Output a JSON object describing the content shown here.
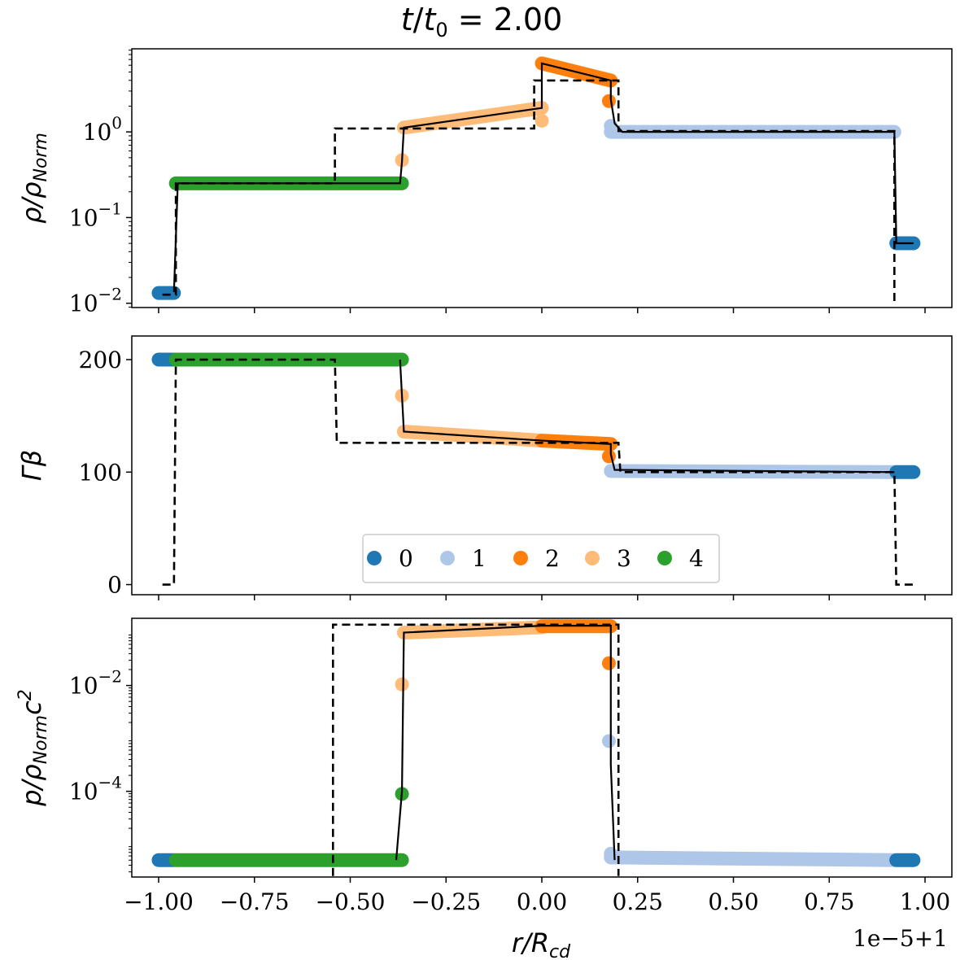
{
  "chart_data": {
    "type": "scatter",
    "title": "t/t₀ = 2.00",
    "xlabel": "r/R_cd",
    "x_offset_label": "1e−5+1",
    "xlim": [
      -1.07,
      1.07
    ],
    "x_ticks": [
      -1.0,
      -0.75,
      -0.5,
      -0.25,
      0.0,
      0.25,
      0.5,
      0.75,
      1.0
    ],
    "x_tick_labels": [
      "−1.00",
      "−0.75",
      "−0.50",
      "−0.25",
      "0.00",
      "0.25",
      "0.50",
      "0.75",
      "1.00"
    ],
    "legend": {
      "entries": [
        {
          "label": "0",
          "color": "#1f77b4"
        },
        {
          "label": "1",
          "color": "#aec7e8"
        },
        {
          "label": "2",
          "color": "#ff7f0e"
        },
        {
          "label": "3",
          "color": "#ffbb78"
        },
        {
          "label": "4",
          "color": "#2ca02c"
        }
      ],
      "placement": "bottom-center of middle panel"
    },
    "panels": [
      {
        "ylabel": "ρ/ρ_Norm",
        "yscale": "log",
        "ylim_log10": [
          -2.05,
          0.97
        ],
        "y_ticks": [
          {
            "log10": 0,
            "base": "10",
            "exp": "0"
          },
          {
            "log10": -1,
            "base": "10",
            "exp": "−1"
          },
          {
            "log10": -2,
            "base": "10",
            "exp": "−2"
          }
        ],
        "analytic_dashed": [
          [
            -0.99,
            -1.9
          ],
          [
            -0.955,
            -1.9
          ],
          [
            -0.955,
            -0.6
          ],
          [
            -0.54,
            -0.6
          ],
          [
            -0.54,
            0.04
          ],
          [
            -0.02,
            0.04
          ],
          [
            -0.02,
            0.6
          ],
          [
            0.2,
            0.6
          ],
          [
            0.2,
            0.01
          ],
          [
            0.92,
            0.01
          ],
          [
            0.92,
            -2.0
          ]
        ],
        "sim_line": [
          [
            -0.96,
            -1.87
          ],
          [
            -0.95,
            -0.6
          ],
          [
            -0.37,
            -0.6
          ],
          [
            -0.365,
            -0.35
          ],
          [
            -0.36,
            0.05
          ],
          [
            0.0,
            0.28
          ],
          [
            0.0,
            0.8
          ],
          [
            0.18,
            0.6
          ],
          [
            0.18,
            0.38
          ],
          [
            0.19,
            0.1
          ],
          [
            0.21,
            0.0
          ],
          [
            0.9,
            0.0
          ],
          [
            0.92,
            0.0
          ],
          [
            0.925,
            -1.3
          ],
          [
            0.97,
            -1.3
          ]
        ],
        "segments": [
          {
            "cluster": "0",
            "x0": -1.0,
            "x1": -0.96,
            "y0": -1.88,
            "y1": -1.88
          },
          {
            "cluster": "4",
            "x0": -0.955,
            "x1": -0.365,
            "y0": -0.6,
            "y1": -0.6
          },
          {
            "cluster": "3",
            "x0": -0.36,
            "x1": 0.0,
            "y0": 0.05,
            "y1": 0.28
          },
          {
            "cluster": "2",
            "x0": 0.0,
            "x1": 0.18,
            "y0": 0.8,
            "y1": 0.6
          },
          {
            "cluster": "1",
            "x0": 0.18,
            "x1": 0.92,
            "y0": 0.0,
            "y1": 0.0
          },
          {
            "cluster": "0",
            "x0": 0.925,
            "x1": 0.97,
            "y0": -1.3,
            "y1": -1.3
          }
        ],
        "points": [
          {
            "cluster": "3",
            "x": -0.365,
            "y": -0.33
          },
          {
            "cluster": "3",
            "x": 0.0,
            "y": 0.13
          },
          {
            "cluster": "2",
            "x": 0.175,
            "y": 0.36
          },
          {
            "cluster": "1",
            "x": 0.18,
            "y": 0.07
          }
        ]
      },
      {
        "ylabel": "Γβ",
        "yscale": "linear",
        "ylim": [
          -9,
          221
        ],
        "y_ticks": [
          {
            "value": 0,
            "label": "0"
          },
          {
            "value": 100,
            "label": "100"
          },
          {
            "value": 200,
            "label": "200"
          }
        ],
        "analytic_dashed": [
          [
            -0.99,
            0
          ],
          [
            -0.96,
            0
          ],
          [
            -0.955,
            200
          ],
          [
            -0.54,
            200
          ],
          [
            -0.535,
            126
          ],
          [
            -0.02,
            126
          ],
          [
            0.2,
            126
          ],
          [
            0.205,
            100
          ],
          [
            0.92,
            100
          ],
          [
            0.925,
            0
          ],
          [
            0.97,
            0
          ]
        ],
        "sim_line": [
          [
            -0.37,
            200
          ],
          [
            -0.365,
            168
          ],
          [
            -0.36,
            136
          ],
          [
            0.0,
            128
          ],
          [
            0.18,
            125
          ],
          [
            0.18,
            116
          ],
          [
            0.19,
            102
          ],
          [
            0.92,
            100
          ]
        ],
        "segments": [
          {
            "cluster": "0",
            "x0": -1.0,
            "x1": -0.96,
            "y0": 200,
            "y1": 200
          },
          {
            "cluster": "4",
            "x0": -0.955,
            "x1": -0.365,
            "y0": 200,
            "y1": 200
          },
          {
            "cluster": "3",
            "x0": -0.36,
            "x1": 0.0,
            "y0": 136,
            "y1": 128
          },
          {
            "cluster": "2",
            "x0": 0.0,
            "x1": 0.18,
            "y0": 128,
            "y1": 125
          },
          {
            "cluster": "1",
            "x0": 0.18,
            "x1": 0.92,
            "y0": 101,
            "y1": 100
          },
          {
            "cluster": "0",
            "x0": 0.925,
            "x1": 0.97,
            "y0": 100,
            "y1": 100
          }
        ],
        "points": [
          {
            "cluster": "3",
            "x": -0.365,
            "y": 168
          },
          {
            "cluster": "2",
            "x": 0.175,
            "y": 114
          }
        ]
      },
      {
        "ylabel": "p/ρ_Norm c²",
        "yscale": "log",
        "ylim_log10": [
          -5.62,
          -0.73
        ],
        "y_ticks": [
          {
            "log10": -2,
            "base": "10",
            "exp": "−2"
          },
          {
            "log10": -4,
            "base": "10",
            "exp": "−4"
          }
        ],
        "analytic_dashed": [
          [
            -0.545,
            -5.6
          ],
          [
            -0.545,
            -0.85
          ],
          [
            0.2,
            -0.85
          ],
          [
            0.2,
            -5.6
          ]
        ],
        "sim_line": [
          [
            -0.38,
            -5.3
          ],
          [
            -0.365,
            -4.0
          ],
          [
            -0.36,
            -1.0
          ],
          [
            0.0,
            -0.87
          ],
          [
            0.18,
            -0.87
          ],
          [
            0.18,
            -3.5
          ],
          [
            0.19,
            -5.3
          ]
        ],
        "segments": [
          {
            "cluster": "0",
            "x0": -1.0,
            "x1": -0.96,
            "y0": -5.3,
            "y1": -5.3
          },
          {
            "cluster": "4",
            "x0": -0.955,
            "x1": -0.365,
            "y0": -5.3,
            "y1": -5.3
          },
          {
            "cluster": "3",
            "x0": -0.36,
            "x1": 0.0,
            "y0": -1.0,
            "y1": -0.9
          },
          {
            "cluster": "2",
            "x0": 0.0,
            "x1": 0.18,
            "y0": -0.88,
            "y1": -0.88
          },
          {
            "cluster": "1",
            "x0": 0.18,
            "x1": 0.92,
            "y0": -5.25,
            "y1": -5.3
          },
          {
            "cluster": "0",
            "x0": 0.925,
            "x1": 0.97,
            "y0": -5.3,
            "y1": -5.3
          }
        ],
        "points": [
          {
            "cluster": "3",
            "x": -0.365,
            "y": -1.98
          },
          {
            "cluster": "4",
            "x": -0.365,
            "y": -4.05
          },
          {
            "cluster": "2",
            "x": 0.175,
            "y": -1.58
          },
          {
            "cluster": "1",
            "x": 0.175,
            "y": -3.05
          },
          {
            "cluster": "1",
            "x": 0.18,
            "y": -5.18
          }
        ]
      }
    ]
  }
}
